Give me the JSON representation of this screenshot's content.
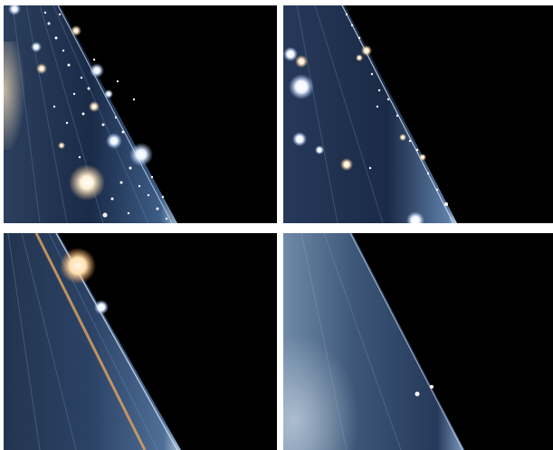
{
  "panels": [
    {
      "name": "panel-top-left",
      "density": "dense-stars"
    },
    {
      "name": "panel-top-right",
      "density": "moderate-stars"
    },
    {
      "name": "panel-bottom-left",
      "density": "few-stars"
    },
    {
      "name": "panel-bottom-right",
      "density": "sparse-stars"
    }
  ],
  "colors": {
    "background": "#000000",
    "separator": "#ffffff",
    "streak_dark": "#0d1a33",
    "streak_mid": "#3a5a85",
    "streak_light": "#c8d8e8",
    "warm_star": "#ffe6b8",
    "cool_star": "#e8f2ff",
    "orange_line": "#d9a060"
  }
}
